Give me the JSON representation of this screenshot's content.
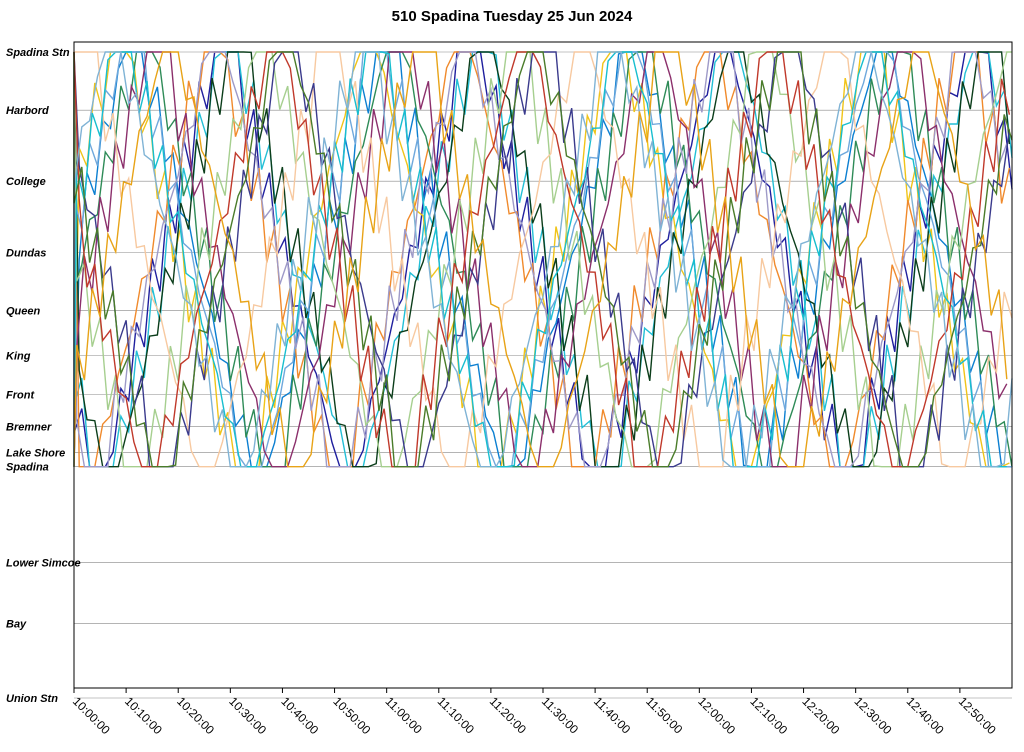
{
  "chart_data": {
    "type": "line",
    "title": "510 Spadina Tuesday 25 Jun 2024",
    "xlabel": "",
    "ylabel": "",
    "x_range": [
      "10:00:00",
      "13:00:00"
    ],
    "x_tick_labels": [
      "10:00:00",
      "10:10:00",
      "10:20:00",
      "10:30:00",
      "10:40:00",
      "10:50:00",
      "11:00:00",
      "11:10:00",
      "11:20:00",
      "11:30:00",
      "11:40:00",
      "11:50:00",
      "12:00:00",
      "12:10:00",
      "12:20:00",
      "12:30:00",
      "12:40:00",
      "12:50:00"
    ],
    "stops": [
      {
        "name": "Spadina Stn",
        "pos": 0.0
      },
      {
        "name": "Harbord",
        "pos": 0.9
      },
      {
        "name": "College",
        "pos": 2.0
      },
      {
        "name": "Dundas",
        "pos": 3.1
      },
      {
        "name": "Queen",
        "pos": 4.0
      },
      {
        "name": "King",
        "pos": 4.7
      },
      {
        "name": "Front",
        "pos": 5.3
      },
      {
        "name": "Bremner",
        "pos": 5.8
      },
      {
        "name": "Lake Shore",
        "pos": 6.2
      },
      {
        "name": "Spadina",
        "pos": 6.42
      },
      {
        "name": "Lower Simcoe",
        "pos": 7.9
      },
      {
        "name": "Bay",
        "pos": 8.85
      },
      {
        "name": "Union Stn",
        "pos": 10.0
      }
    ],
    "route_span": {
      "top_stop": "Spadina Stn",
      "bottom_stop": "Spadina"
    },
    "vehicle_colors": [
      "#1f1f9e",
      "#0b7fd1",
      "#22bfd6",
      "#f0c419",
      "#f08a2c",
      "#2e8b57",
      "#0b3d1a",
      "#6fa8dc",
      "#9e9ac8",
      "#8b2f6b",
      "#a6cf8f",
      "#f7c9a0",
      "#3a3a8c",
      "#17becf",
      "#c0392b",
      "#7fb3d5",
      "#4a7c2a",
      "#e8a317"
    ],
    "vehicles": [
      {
        "color": "#1f1f9e",
        "first_trip": "10:03:00"
      },
      {
        "color": "#0b7fd1",
        "first_trip": "10:10:00"
      },
      {
        "color": "#22bfd6",
        "first_trip": "10:04:30"
      },
      {
        "color": "#f0c419",
        "first_trip": "10:07:00"
      },
      {
        "color": "#f08a2c",
        "first_trip": "10:01:00"
      },
      {
        "color": "#2e8b57",
        "first_trip": "10:12:00"
      },
      {
        "color": "#0b3d1a",
        "first_trip": "10:05:30"
      },
      {
        "color": "#6fa8dc",
        "first_trip": "10:09:00"
      },
      {
        "color": "#9e9ac8",
        "first_trip": "10:02:00"
      },
      {
        "color": "#8b2f6b",
        "first_trip": "10:14:00"
      },
      {
        "color": "#a6cf8f",
        "first_trip": "10:11:00"
      },
      {
        "color": "#f7c9a0",
        "first_trip": "10:00:00"
      },
      {
        "color": "#3a3a8c",
        "first_trip": "10:16:00"
      },
      {
        "color": "#17becf",
        "first_trip": "10:08:00"
      },
      {
        "color": "#c0392b",
        "first_trip": "10:13:00"
      },
      {
        "color": "#7fb3d5",
        "first_trip": "10:06:00"
      },
      {
        "color": "#4a7c2a",
        "first_trip": "10:15:00"
      },
      {
        "color": "#e8a317",
        "first_trip": "10:17:00"
      }
    ],
    "trip_minutes_one_way": 21,
    "layover_minutes": 3,
    "grid": true,
    "legend": "none"
  }
}
